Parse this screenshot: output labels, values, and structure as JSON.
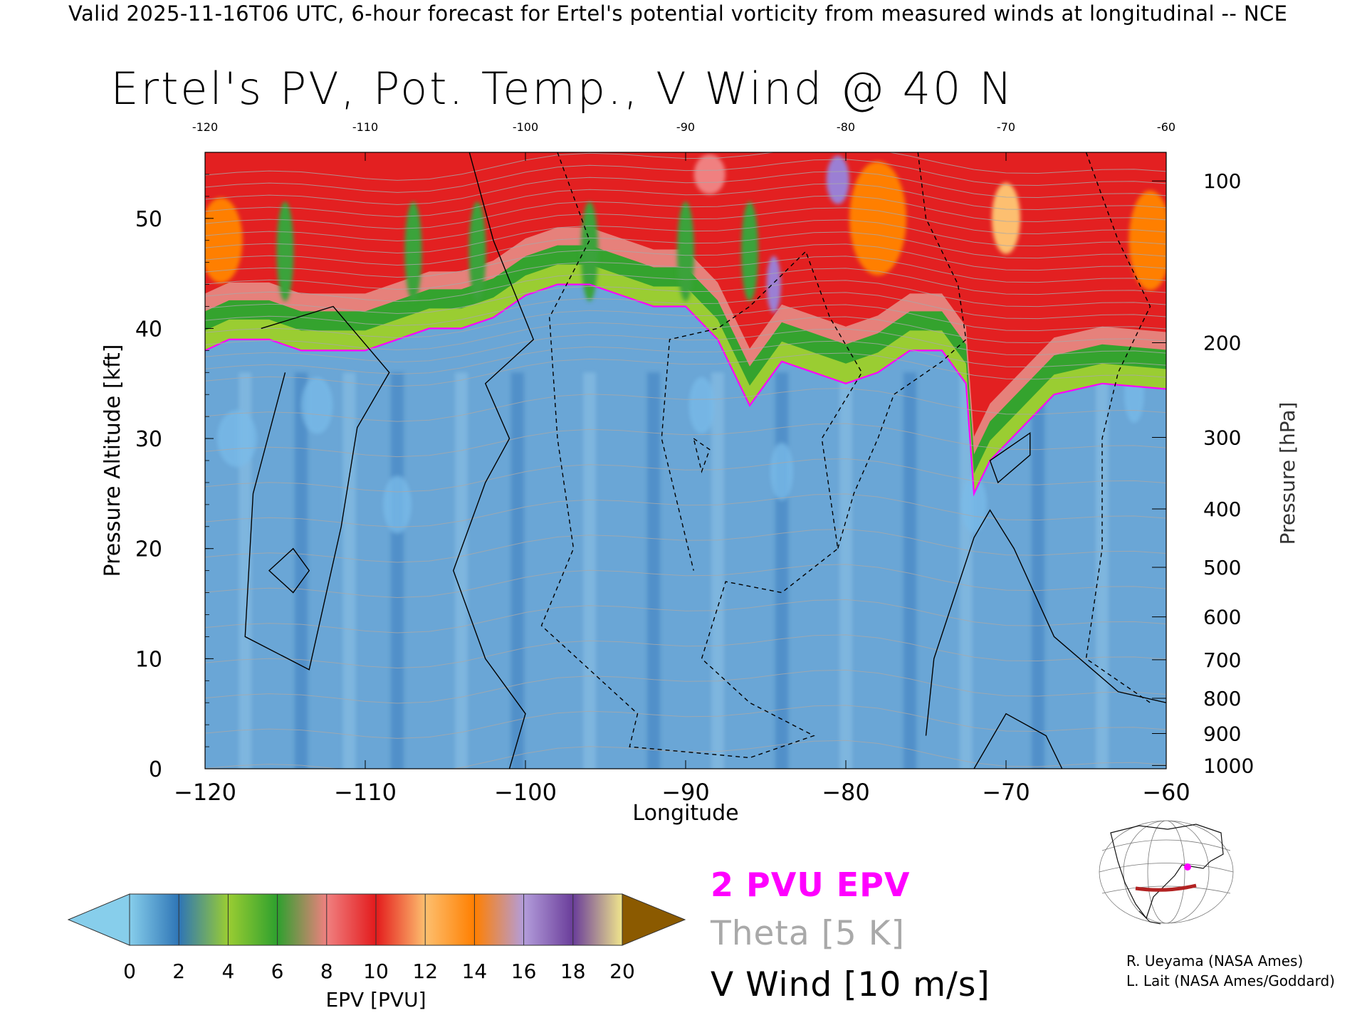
{
  "header": "Valid 2025-11-16T06 UTC, 6-hour forecast for Ertel's potential vorticity from measured winds at longitudinal -- NCE",
  "colors": {
    "pv_contour": "#ff00ff",
    "theta_contour": "#a9a9a9",
    "vwind_contour": "#000000",
    "background": "#ffffff"
  },
  "chart_data": {
    "type": "heatmap",
    "title": "Ertel's PV, Pot. Temp., V Wind @ 40 N",
    "xlabel": "Longitude",
    "ylabel": "Pressure Altitude [kft]",
    "y2label": "Pressure [hPa]",
    "xlim": [
      -120,
      -60
    ],
    "ylim": [
      0,
      56
    ],
    "x_ticks": [
      "−120",
      "−110",
      "−100",
      "−90",
      "−80",
      "−70",
      "−60"
    ],
    "x_top_ticks": [
      "-120",
      "-110",
      "-100",
      "-90",
      "-80",
      "-70",
      "-60"
    ],
    "y_ticks": [
      "0",
      "10",
      "20",
      "30",
      "40",
      "50"
    ],
    "y2_ticks": [
      {
        "label": "100",
        "kft": 53.4
      },
      {
        "label": "200",
        "kft": 38.7
      },
      {
        "label": "300",
        "kft": 30.1
      },
      {
        "label": "400",
        "kft": 23.6
      },
      {
        "label": "500",
        "kft": 18.3
      },
      {
        "label": "600",
        "kft": 13.8
      },
      {
        "label": "700",
        "kft": 9.9
      },
      {
        "label": "800",
        "kft": 6.4
      },
      {
        "label": "900",
        "kft": 3.2
      },
      {
        "label": "1000",
        "kft": 0.3
      }
    ],
    "tropopause_2pvu_kft": [
      {
        "lon": -120,
        "kft": 38
      },
      {
        "lon": -118.5,
        "kft": 39
      },
      {
        "lon": -117.5,
        "kft": 39
      },
      {
        "lon": -116,
        "kft": 39
      },
      {
        "lon": -114,
        "kft": 38
      },
      {
        "lon": -112,
        "kft": 38
      },
      {
        "lon": -110,
        "kft": 38
      },
      {
        "lon": -108,
        "kft": 39
      },
      {
        "lon": -106,
        "kft": 40
      },
      {
        "lon": -104,
        "kft": 40
      },
      {
        "lon": -102,
        "kft": 41
      },
      {
        "lon": -100,
        "kft": 43
      },
      {
        "lon": -98,
        "kft": 44
      },
      {
        "lon": -96,
        "kft": 44
      },
      {
        "lon": -94,
        "kft": 43
      },
      {
        "lon": -92,
        "kft": 42
      },
      {
        "lon": -90,
        "kft": 42
      },
      {
        "lon": -88,
        "kft": 39
      },
      {
        "lon": -86,
        "kft": 33
      },
      {
        "lon": -84,
        "kft": 37
      },
      {
        "lon": -82,
        "kft": 36
      },
      {
        "lon": -80,
        "kft": 35
      },
      {
        "lon": -78,
        "kft": 36
      },
      {
        "lon": -76,
        "kft": 38
      },
      {
        "lon": -74,
        "kft": 38
      },
      {
        "lon": -72.5,
        "kft": 35
      },
      {
        "lon": -72,
        "kft": 25
      },
      {
        "lon": -71,
        "kft": 28
      },
      {
        "lon": -69,
        "kft": 31
      },
      {
        "lon": -67,
        "kft": 34
      },
      {
        "lon": -64,
        "kft": 35
      },
      {
        "lon": -60,
        "kft": 34.5
      }
    ],
    "colorbar": {
      "label": "EPV [PVU]",
      "ticks": [
        "0",
        "2",
        "4",
        "6",
        "8",
        "10",
        "12",
        "14",
        "16",
        "18",
        "20"
      ],
      "colors": [
        "#87ceeb",
        "#2e75b6",
        "#9acd32",
        "#2ea02e",
        "#f08080",
        "#e31a1c",
        "#fdbf6f",
        "#ff7f00",
        "#b39ddb",
        "#6a3d9a",
        "#f0e68c",
        "#8b5a00"
      ]
    },
    "legend": {
      "pv": "2 PVU EPV",
      "theta": "Theta [5 K]",
      "vwind": "V Wind [10 m/s]"
    },
    "annotations": [
      "R. Ueyama (NASA Ames)",
      "L. Lait (NASA Ames/Goddard)"
    ]
  }
}
